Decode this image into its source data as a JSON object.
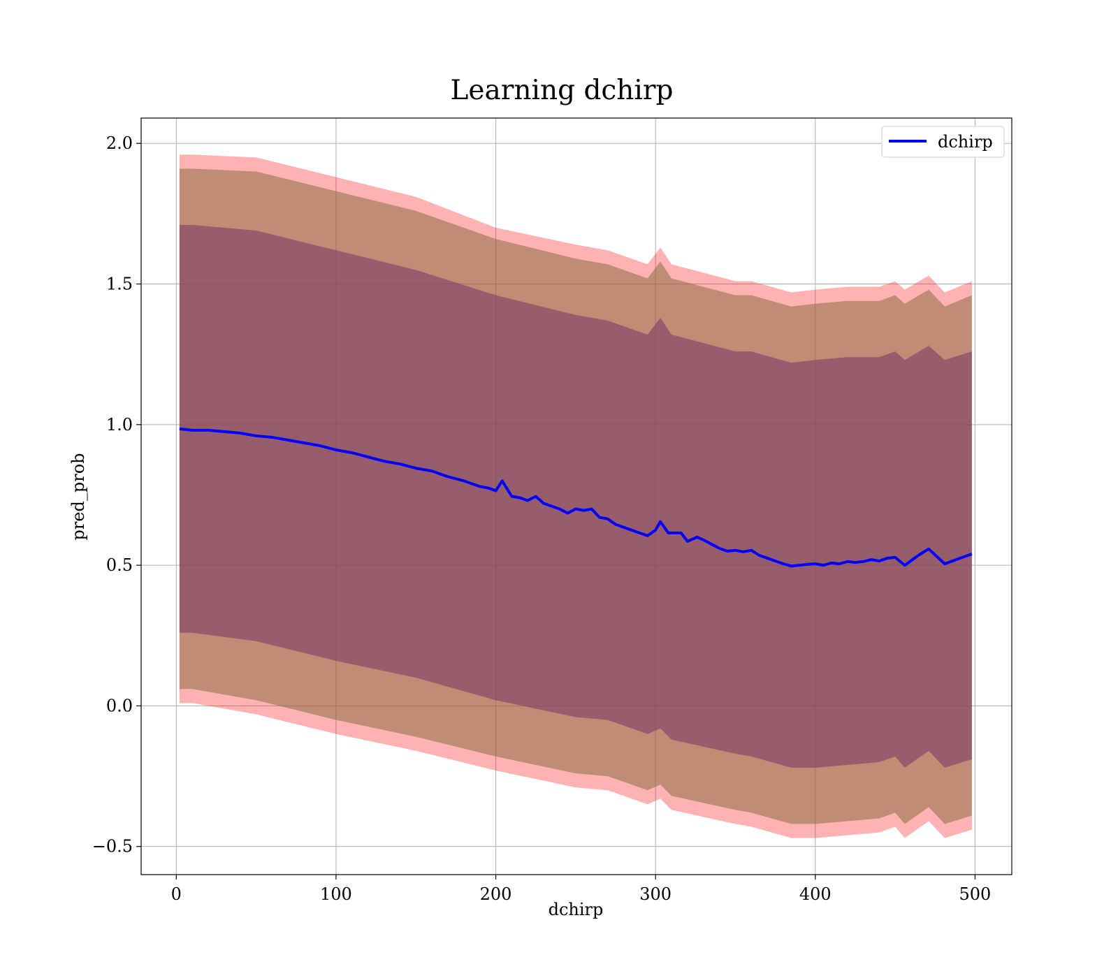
{
  "chart_data": {
    "type": "line",
    "title": "Learning dchirp",
    "xlabel": "dchirp",
    "ylabel": "pred_prob",
    "xlim": [
      -22,
      523
    ],
    "ylim": [
      -0.6,
      2.09
    ],
    "xticks": [
      0,
      100,
      200,
      300,
      400,
      500
    ],
    "yticks": [
      -0.5,
      0.0,
      0.5,
      1.0,
      1.5,
      2.0
    ],
    "xtick_labels": [
      "0",
      "100",
      "200",
      "300",
      "400",
      "500"
    ],
    "ytick_labels": [
      "−0.5",
      "0.0",
      "0.5",
      "1.0",
      "1.5",
      "2.0"
    ],
    "grid": true,
    "legend_position": "top-right",
    "series": [
      {
        "name": "dchirp",
        "color": "#0000ff",
        "x": [
          2,
          10,
          20,
          30,
          40,
          50,
          60,
          70,
          80,
          90,
          100,
          110,
          120,
          130,
          140,
          150,
          160,
          170,
          180,
          185,
          190,
          195,
          200,
          204,
          210,
          215,
          220,
          225,
          230,
          235,
          240,
          245,
          250,
          255,
          260,
          265,
          270,
          275,
          280,
          285,
          290,
          295,
          300,
          303,
          308,
          312,
          316,
          320,
          326,
          330,
          335,
          340,
          345,
          350,
          355,
          360,
          365,
          370,
          375,
          380,
          385,
          390,
          395,
          400,
          405,
          410,
          415,
          420,
          425,
          430,
          435,
          440,
          445,
          450,
          456,
          465,
          471,
          481,
          498
        ],
        "values": [
          0.985,
          0.98,
          0.98,
          0.975,
          0.97,
          0.96,
          0.955,
          0.945,
          0.935,
          0.925,
          0.91,
          0.9,
          0.885,
          0.87,
          0.86,
          0.845,
          0.835,
          0.815,
          0.8,
          0.79,
          0.78,
          0.775,
          0.765,
          0.8,
          0.745,
          0.74,
          0.73,
          0.745,
          0.72,
          0.71,
          0.7,
          0.685,
          0.7,
          0.695,
          0.7,
          0.67,
          0.665,
          0.645,
          0.635,
          0.625,
          0.615,
          0.605,
          0.625,
          0.655,
          0.615,
          0.615,
          0.615,
          0.585,
          0.6,
          0.59,
          0.575,
          0.56,
          0.55,
          0.553,
          0.548,
          0.553,
          0.535,
          0.525,
          0.515,
          0.505,
          0.497,
          0.5,
          0.503,
          0.505,
          0.5,
          0.508,
          0.505,
          0.513,
          0.51,
          0.513,
          0.52,
          0.515,
          0.525,
          0.528,
          0.5,
          0.537,
          0.558,
          0.505,
          0.54
        ]
      }
    ],
    "bands": [
      {
        "color": "#ff0000",
        "opacity": 0.3,
        "x": [
          2,
          10,
          50,
          100,
          150,
          200,
          250,
          270,
          295,
          303,
          310,
          350,
          360,
          385,
          400,
          420,
          440,
          450,
          456,
          471,
          481,
          498
        ],
        "upper": [
          1.96,
          1.96,
          1.95,
          1.88,
          1.81,
          1.7,
          1.64,
          1.62,
          1.57,
          1.63,
          1.57,
          1.51,
          1.51,
          1.47,
          1.48,
          1.49,
          1.49,
          1.51,
          1.48,
          1.53,
          1.47,
          1.51
        ],
        "lower": [
          0.01,
          0.01,
          -0.03,
          -0.1,
          -0.16,
          -0.23,
          -0.29,
          -0.3,
          -0.35,
          -0.33,
          -0.37,
          -0.42,
          -0.43,
          -0.47,
          -0.47,
          -0.46,
          -0.45,
          -0.43,
          -0.47,
          -0.41,
          -0.47,
          -0.44
        ]
      },
      {
        "color": "#8b6f45",
        "opacity": 0.55,
        "x": [
          2,
          10,
          50,
          100,
          150,
          200,
          250,
          270,
          295,
          303,
          310,
          350,
          360,
          385,
          400,
          420,
          440,
          450,
          456,
          471,
          481,
          498
        ],
        "upper": [
          1.91,
          1.91,
          1.9,
          1.83,
          1.76,
          1.66,
          1.59,
          1.57,
          1.52,
          1.58,
          1.52,
          1.46,
          1.46,
          1.42,
          1.43,
          1.44,
          1.44,
          1.46,
          1.43,
          1.48,
          1.42,
          1.46
        ],
        "lower": [
          0.06,
          0.06,
          0.02,
          -0.05,
          -0.11,
          -0.18,
          -0.24,
          -0.25,
          -0.3,
          -0.28,
          -0.32,
          -0.37,
          -0.38,
          -0.42,
          -0.42,
          -0.41,
          -0.4,
          -0.38,
          -0.42,
          -0.36,
          -0.42,
          -0.39
        ]
      },
      {
        "color": "#7b3f66",
        "opacity": 0.6,
        "x": [
          2,
          10,
          50,
          100,
          150,
          200,
          250,
          270,
          295,
          303,
          310,
          350,
          360,
          385,
          400,
          420,
          440,
          450,
          456,
          471,
          481,
          498
        ],
        "upper": [
          1.71,
          1.71,
          1.69,
          1.62,
          1.55,
          1.46,
          1.39,
          1.37,
          1.32,
          1.38,
          1.32,
          1.26,
          1.26,
          1.22,
          1.23,
          1.24,
          1.24,
          1.26,
          1.23,
          1.28,
          1.23,
          1.26
        ],
        "lower": [
          0.26,
          0.26,
          0.23,
          0.16,
          0.1,
          0.02,
          -0.04,
          -0.05,
          -0.1,
          -0.08,
          -0.12,
          -0.17,
          -0.18,
          -0.22,
          -0.22,
          -0.21,
          -0.2,
          -0.18,
          -0.22,
          -0.16,
          -0.22,
          -0.19
        ]
      }
    ]
  }
}
